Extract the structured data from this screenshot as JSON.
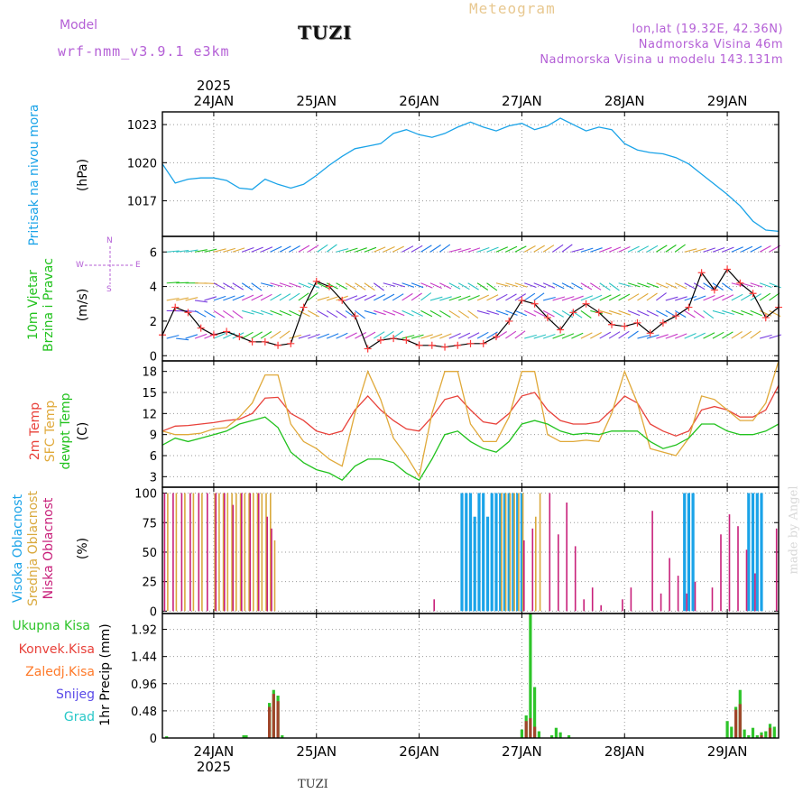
{
  "header": {
    "model_label": "Model",
    "model_name": "wrf-nmm_v3.9.1 e3km",
    "station": "TUZI",
    "meteogram": "Meteogram",
    "lonlat": "lon,lat (19.32E, 42.36N)",
    "elevation": "Nadmorska Visina 46m",
    "model_elevation": "Nadmorska Visina u modelu 143.131m",
    "footer_station": "TUZI",
    "credit": "made by Angel",
    "year": "2025",
    "year_bottom": "2025"
  },
  "dates": [
    "24JAN",
    "25JAN",
    "26JAN",
    "27JAN",
    "28JAN",
    "29JAN"
  ],
  "panel_labels": {
    "pressure": {
      "name": "Pritisak na nivou mora",
      "unit": "(hPa)"
    },
    "wind": {
      "line1": "10m Vjetar",
      "line2": "Brzina i Pravac",
      "unit": "(m/s)",
      "compass_n": "N",
      "compass_s": "S",
      "compass_w": "W",
      "compass_e": "E"
    },
    "temp": {
      "t2m": "2m Temp",
      "sfc": "SFC Temp",
      "dewpt": "dewpt Temp",
      "unit": "(C)"
    },
    "cloud": {
      "high": "Visoka Oblacnost",
      "mid": "Srednja Oblacnost",
      "low": "Niska Oblacnost",
      "unit": "(%)"
    },
    "precip": {
      "total": "Ukupna Kisa",
      "conv": "Konvek.Kisa",
      "frozen": "Zaledj.Kisa",
      "snow": "Snijeg",
      "graupel": "Grad",
      "unit": "1hr Precip (mm)"
    }
  },
  "colors": {
    "pressure": "#1aa3e8",
    "wind_speed": "#000000",
    "wind_marker": "#ff3b3b",
    "t2m": "#e8413a",
    "sfc": "#e0a93a",
    "dewpt": "#22c21e",
    "cloud_high": "#1aa3e8",
    "cloud_mid": "#d9a93d",
    "cloud_low": "#c8207a",
    "precip_total": "#2ec42a",
    "precip_conv": "#a0452a",
    "label_total": "#2ec42a",
    "label_conv": "#e8413a",
    "label_frozen": "#ff7a2a",
    "label_snow": "#5a4ae8",
    "label_graupel": "#28c8c8",
    "violet": "#b45fd6"
  },
  "chart_data": [
    {
      "type": "line",
      "title": "Pritisak na nivou mora",
      "ylabel": "(hPa)",
      "x_unit": "hours from 24JAN 00 UTC",
      "xlim": [
        -12,
        132
      ],
      "ylim": [
        1014.2,
        1024.0
      ],
      "yticks": [
        1017,
        1020,
        1023
      ],
      "yticklabels": [
        "1017",
        "1020",
        "1023"
      ],
      "grid": true,
      "series": [
        {
          "name": "MSLP",
          "color": "#1aa3e8",
          "x": [
            -12,
            -9,
            -6,
            -3,
            0,
            3,
            6,
            9,
            12,
            15,
            18,
            21,
            24,
            27,
            30,
            33,
            36,
            39,
            42,
            45,
            48,
            51,
            54,
            57,
            60,
            63,
            66,
            69,
            72,
            75,
            78,
            81,
            84,
            87,
            90,
            93,
            96,
            99,
            102,
            105,
            108,
            111,
            114,
            117,
            120,
            123,
            126,
            129,
            132
          ],
          "y": [
            1019.9,
            1018.4,
            1018.7,
            1018.8,
            1018.8,
            1018.6,
            1018.0,
            1017.9,
            1018.7,
            1018.3,
            1018.0,
            1018.3,
            1019.0,
            1019.8,
            1020.5,
            1021.1,
            1021.3,
            1021.5,
            1022.3,
            1022.6,
            1022.2,
            1022.0,
            1022.3,
            1022.8,
            1023.2,
            1022.8,
            1022.5,
            1022.9,
            1023.1,
            1022.6,
            1022.9,
            1023.5,
            1023.0,
            1022.5,
            1022.8,
            1022.6,
            1021.5,
            1021.0,
            1020.8,
            1020.7,
            1020.4,
            1019.9,
            1019.1,
            1018.3,
            1017.5,
            1016.6,
            1015.4,
            1014.7,
            1014.6
          ]
        }
      ]
    },
    {
      "type": "line",
      "title": "10m Vjetar Brzina i Pravac",
      "ylabel": "(m/s)",
      "x_unit": "hours from 24JAN 00 UTC",
      "xlim": [
        -12,
        132
      ],
      "ylim": [
        -0.3,
        6.9
      ],
      "yticks": [
        0,
        2,
        4,
        6
      ],
      "yticklabels": [
        "0",
        "2",
        "4",
        "6"
      ],
      "grid": true,
      "series": [
        {
          "name": "wind speed",
          "color": "#000000",
          "x": [
            -12,
            -9,
            -6,
            -3,
            0,
            3,
            6,
            9,
            12,
            15,
            18,
            21,
            24,
            27,
            30,
            33,
            36,
            39,
            42,
            45,
            48,
            51,
            54,
            57,
            60,
            63,
            66,
            69,
            72,
            75,
            78,
            81,
            84,
            87,
            90,
            93,
            96,
            99,
            102,
            105,
            108,
            111,
            114,
            117,
            120,
            123,
            126,
            129,
            132
          ],
          "y": [
            1.2,
            2.8,
            2.5,
            1.6,
            1.2,
            1.4,
            1.1,
            0.8,
            0.8,
            0.6,
            0.7,
            2.8,
            4.3,
            4.0,
            3.2,
            2.3,
            0.4,
            0.9,
            1.0,
            0.9,
            0.6,
            0.6,
            0.5,
            0.6,
            0.7,
            0.7,
            1.1,
            2.0,
            3.2,
            3.0,
            2.2,
            1.5,
            2.5,
            3.0,
            2.5,
            1.8,
            1.7,
            1.9,
            1.3,
            1.9,
            2.3,
            2.8,
            4.8,
            3.8,
            5.0,
            4.2,
            3.6,
            2.2,
            2.8
          ]
        }
      ],
      "barb_rows": [
        6.0,
        4.2,
        3.2,
        2.6,
        1.0
      ]
    },
    {
      "type": "line",
      "title": "2m Temp / SFC Temp / dewpt Temp",
      "ylabel": "(C)",
      "x_unit": "hours from 24JAN 00 UTC",
      "xlim": [
        -12,
        132
      ],
      "ylim": [
        1.5,
        19.5
      ],
      "yticks": [
        3,
        6,
        9,
        12,
        15,
        18
      ],
      "yticklabels": [
        "3",
        "6",
        "9",
        "12",
        "15",
        "18"
      ],
      "grid": true,
      "series": [
        {
          "name": "2m Temp",
          "color": "#e8413a",
          "x": [
            -12,
            -9,
            -6,
            -3,
            0,
            3,
            6,
            9,
            12,
            15,
            18,
            21,
            24,
            27,
            30,
            33,
            36,
            39,
            42,
            45,
            48,
            51,
            54,
            57,
            60,
            63,
            66,
            69,
            72,
            75,
            78,
            81,
            84,
            87,
            90,
            93,
            96,
            99,
            102,
            105,
            108,
            111,
            114,
            117,
            120,
            123,
            126,
            129,
            132
          ],
          "y": [
            9.5,
            10.2,
            10.3,
            10.5,
            10.7,
            11.0,
            11.2,
            12.0,
            14.2,
            14.3,
            12.0,
            11.0,
            9.5,
            9.0,
            9.5,
            12.5,
            14.5,
            12.5,
            11.0,
            9.8,
            9.5,
            11.5,
            14.0,
            14.5,
            12.5,
            10.8,
            10.5,
            12.0,
            14.5,
            15.0,
            12.5,
            11.0,
            10.5,
            10.5,
            10.8,
            12.5,
            14.5,
            13.5,
            10.5,
            9.5,
            8.8,
            9.5,
            12.5,
            13.0,
            12.5,
            11.5,
            11.5,
            12.5,
            16.0
          ]
        },
        {
          "name": "SFC Temp",
          "color": "#e0a93a",
          "x": [
            -12,
            -9,
            -6,
            -3,
            0,
            3,
            6,
            9,
            12,
            15,
            18,
            21,
            24,
            27,
            30,
            33,
            36,
            39,
            42,
            45,
            48,
            51,
            54,
            57,
            60,
            63,
            66,
            69,
            72,
            75,
            78,
            81,
            84,
            87,
            90,
            93,
            96,
            99,
            102,
            105,
            108,
            111,
            114,
            117,
            120,
            123,
            126,
            129,
            132
          ],
          "y": [
            9.5,
            9.0,
            9.0,
            9.2,
            9.8,
            10.0,
            11.5,
            13.5,
            17.5,
            17.5,
            10.5,
            8.0,
            7.0,
            5.5,
            4.5,
            12.0,
            18.0,
            14.0,
            8.5,
            6.0,
            3.0,
            12.0,
            18.0,
            18.0,
            10.5,
            8.0,
            8.0,
            11.5,
            18.0,
            18.0,
            9.0,
            8.0,
            8.0,
            8.2,
            8.0,
            12.0,
            18.0,
            13.5,
            7.0,
            6.5,
            6.0,
            8.5,
            14.5,
            14.0,
            12.5,
            11.0,
            11.0,
            13.5,
            19.5
          ]
        },
        {
          "name": "dewpt Temp",
          "color": "#22c21e",
          "x": [
            -12,
            -9,
            -6,
            -3,
            0,
            3,
            6,
            9,
            12,
            15,
            18,
            21,
            24,
            27,
            30,
            33,
            36,
            39,
            42,
            45,
            48,
            51,
            54,
            57,
            60,
            63,
            66,
            69,
            72,
            75,
            78,
            81,
            84,
            87,
            90,
            93,
            96,
            99,
            102,
            105,
            108,
            111,
            114,
            117,
            120,
            123,
            126,
            129,
            132
          ],
          "y": [
            7.5,
            8.5,
            8.0,
            8.5,
            9.0,
            9.5,
            10.5,
            11.0,
            11.5,
            10.0,
            6.5,
            5.0,
            4.0,
            3.5,
            2.5,
            4.5,
            5.5,
            5.5,
            5.0,
            3.5,
            2.5,
            5.5,
            9.0,
            9.5,
            8.0,
            7.0,
            6.5,
            8.0,
            10.5,
            11.0,
            10.5,
            9.5,
            9.0,
            9.2,
            9.0,
            9.5,
            9.5,
            9.5,
            8.0,
            7.0,
            7.5,
            8.5,
            10.5,
            10.5,
            9.5,
            9.0,
            9.0,
            9.5,
            10.5
          ]
        }
      ]
    },
    {
      "type": "bar",
      "title": "Visoka / Srednja / Niska Oblacnost",
      "ylabel": "(%)",
      "x_unit": "hours from 24JAN 00 UTC",
      "xlim": [
        -12,
        132
      ],
      "ylim": [
        -2,
        105
      ],
      "yticks": [
        0,
        25,
        50,
        75,
        100
      ],
      "yticklabels": [
        "0",
        "25",
        "50",
        "75",
        "100"
      ],
      "grid": true,
      "series": [
        {
          "name": "Visoka Oblacnost",
          "color": "#1aa3e8",
          "x": [
            58,
            59,
            60,
            61,
            62,
            63,
            64,
            65,
            66,
            67,
            68,
            69,
            70,
            71,
            72,
            110,
            111,
            112,
            125,
            126,
            127,
            128
          ],
          "y": [
            100,
            100,
            100,
            80,
            100,
            100,
            80,
            100,
            100,
            100,
            100,
            100,
            100,
            100,
            100,
            100,
            100,
            100,
            100,
            100,
            100,
            100
          ]
        },
        {
          "name": "Srednja Oblacnost",
          "color": "#d9a93d",
          "x": [
            -11,
            -9,
            -7,
            -5,
            -3,
            0,
            1,
            2,
            3,
            4,
            5,
            6,
            7,
            8,
            9,
            10,
            11,
            12,
            13,
            14,
            67,
            68,
            69,
            70,
            71,
            72,
            75,
            76
          ],
          "y": [
            100,
            100,
            100,
            100,
            100,
            100,
            100,
            100,
            100,
            100,
            100,
            100,
            100,
            100,
            100,
            100,
            100,
            100,
            100,
            60,
            100,
            100,
            100,
            100,
            100,
            100,
            80,
            100
          ]
        },
        {
          "name": "Niska Oblacnost",
          "color": "#c8207a",
          "x": [
            -12,
            -10,
            -8,
            -6,
            -4,
            -2,
            0,
            2,
            4,
            6,
            8,
            10,
            12,
            13,
            51,
            72,
            74,
            78,
            80,
            82,
            84,
            86,
            88,
            90,
            95,
            97,
            102,
            104,
            106,
            108,
            110,
            112,
            116,
            118,
            120,
            122,
            124,
            126,
            131
          ],
          "y": [
            100,
            100,
            100,
            100,
            100,
            100,
            100,
            100,
            90,
            100,
            100,
            100,
            80,
            70,
            10,
            60,
            70,
            100,
            65,
            92,
            55,
            10,
            20,
            5,
            10,
            20,
            85,
            15,
            45,
            30,
            15,
            25,
            20,
            65,
            82,
            72,
            52,
            32,
            70
          ]
        }
      ]
    },
    {
      "type": "bar",
      "title": "1hr Precip",
      "ylabel": "1hr Precip (mm)",
      "x_unit": "hours from 24JAN 00 UTC",
      "xlim": [
        -12,
        132
      ],
      "ylim": [
        0,
        2.2
      ],
      "yticks": [
        0,
        0.48,
        0.96,
        1.44,
        1.92
      ],
      "yticklabels": [
        "0",
        "0.48",
        "0.96",
        "1.44",
        "1.92"
      ],
      "grid": true,
      "series": [
        {
          "name": "Ukupna Kisa",
          "color": "#2ec42a",
          "x": [
            -11,
            7,
            7.6,
            13,
            14,
            15,
            16,
            72,
            73,
            74,
            75,
            76,
            79,
            80,
            81,
            83,
            120,
            121,
            122,
            123,
            124,
            125,
            126,
            127,
            128,
            129,
            130,
            131
          ],
          "y": [
            0.03,
            0.05,
            0.05,
            0.62,
            0.85,
            0.75,
            0.05,
            0.15,
            0.4,
            2.2,
            0.9,
            0.12,
            0.05,
            0.18,
            0.1,
            0.05,
            0.3,
            0.2,
            0.55,
            0.85,
            0.15,
            0.05,
            0.18,
            0.05,
            0.1,
            0.12,
            0.25,
            0.2
          ]
        },
        {
          "name": "Konvek.Kisa",
          "color": "#a0452a",
          "x": [
            13,
            14,
            15,
            73,
            74,
            75,
            122,
            123,
            128,
            130
          ],
          "y": [
            0.55,
            0.78,
            0.65,
            0.3,
            0.35,
            0.2,
            0.5,
            0.6,
            0.05,
            0.18
          ]
        }
      ]
    }
  ]
}
